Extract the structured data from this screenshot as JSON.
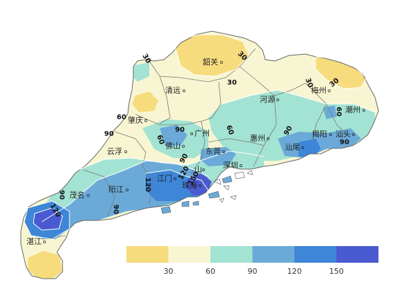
{
  "map": {
    "legend": {
      "colors": [
        "#f7dc7e",
        "#f8f6d2",
        "#a3e3d3",
        "#6baad8",
        "#3d86d8",
        "#4a5ad0"
      ],
      "ticks": [
        "30",
        "60",
        "90",
        "120",
        "150"
      ]
    },
    "cities": [
      {
        "id": "shaoguan",
        "name": "韶关"
      },
      {
        "id": "qingyuan",
        "name": "清远"
      },
      {
        "id": "heyuan",
        "name": "河源"
      },
      {
        "id": "meizhou",
        "name": "梅州"
      },
      {
        "id": "chaozhou",
        "name": "潮州"
      },
      {
        "id": "zhaoqing",
        "name": "肇庆"
      },
      {
        "id": "guangzhou",
        "name": "广州"
      },
      {
        "id": "huizhou",
        "name": "惠州"
      },
      {
        "id": "jieyang",
        "name": "揭阳"
      },
      {
        "id": "shantou",
        "name": "汕头"
      },
      {
        "id": "shanwei",
        "name": "汕尾"
      },
      {
        "id": "foshan",
        "name": "佛山"
      },
      {
        "id": "dongguan",
        "name": "东莞"
      },
      {
        "id": "yunfu",
        "name": "云浮"
      },
      {
        "id": "shenzhen",
        "name": "深圳"
      },
      {
        "id": "jiangmen",
        "name": "江门"
      },
      {
        "id": "zhuhai",
        "name": "珠海"
      },
      {
        "id": "zhongshan",
        "name": "山"
      },
      {
        "id": "yangjiang",
        "name": "阳江"
      },
      {
        "id": "maoming",
        "name": "茂名"
      },
      {
        "id": "zhanjiang",
        "name": "湛江"
      }
    ],
    "contour_labels": [
      "30",
      "30",
      "30",
      "30",
      "30",
      "60",
      "60",
      "60",
      "60",
      "90",
      "90",
      "90",
      "90",
      "90",
      "90",
      "90",
      "120",
      "120",
      "150",
      "120"
    ]
  }
}
